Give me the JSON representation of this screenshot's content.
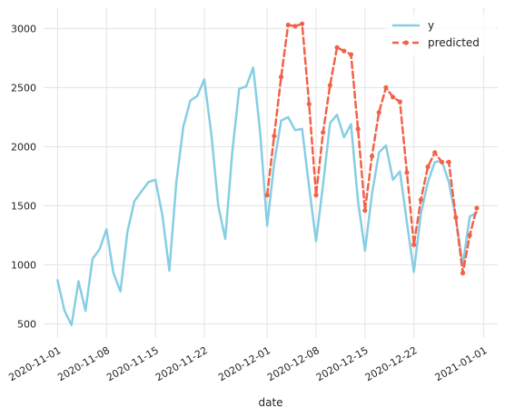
{
  "chart_data": {
    "type": "line",
    "title": "",
    "xlabel": "date",
    "ylabel": "",
    "grid": true,
    "legend_position": "top-right",
    "x_ticks": [
      "2020-11-01",
      "2020-11-08",
      "2020-11-15",
      "2020-11-22",
      "2020-12-01",
      "2020-12-08",
      "2020-12-15",
      "2020-12-22",
      "2021-01-01"
    ],
    "y_ticks": [
      500,
      1000,
      1500,
      2000,
      2500,
      3000
    ],
    "ylim": [
      380,
      3180
    ],
    "xlim": [
      "2020-10-30",
      "2021-01-03"
    ],
    "series": [
      {
        "name": "y",
        "color": "#87CEE3",
        "style": "solid",
        "points": [
          [
            "2020-11-01",
            870
          ],
          [
            "2020-11-02",
            610
          ],
          [
            "2020-11-03",
            490
          ],
          [
            "2020-11-04",
            860
          ],
          [
            "2020-11-05",
            610
          ],
          [
            "2020-11-06",
            1050
          ],
          [
            "2020-11-07",
            1130
          ],
          [
            "2020-11-08",
            1300
          ],
          [
            "2020-11-09",
            930
          ],
          [
            "2020-11-10",
            775
          ],
          [
            "2020-11-11",
            1280
          ],
          [
            "2020-11-12",
            1540
          ],
          [
            "2020-11-13",
            1620
          ],
          [
            "2020-11-14",
            1700
          ],
          [
            "2020-11-15",
            1720
          ],
          [
            "2020-11-16",
            1420
          ],
          [
            "2020-11-17",
            950
          ],
          [
            "2020-11-18",
            1700
          ],
          [
            "2020-11-19",
            2170
          ],
          [
            "2020-11-20",
            2390
          ],
          [
            "2020-11-21",
            2430
          ],
          [
            "2020-11-22",
            2570
          ],
          [
            "2020-11-23",
            2110
          ],
          [
            "2020-11-24",
            1500
          ],
          [
            "2020-11-25",
            1220
          ],
          [
            "2020-11-26",
            1950
          ],
          [
            "2020-11-27",
            2490
          ],
          [
            "2020-11-28",
            2510
          ],
          [
            "2020-11-29",
            2670
          ],
          [
            "2020-11-30",
            2120
          ],
          [
            "2020-12-01",
            1330
          ],
          [
            "2020-12-02",
            1860
          ],
          [
            "2020-12-03",
            2220
          ],
          [
            "2020-12-04",
            2250
          ],
          [
            "2020-12-05",
            2140
          ],
          [
            "2020-12-06",
            2150
          ],
          [
            "2020-12-07",
            1660
          ],
          [
            "2020-12-08",
            1200
          ],
          [
            "2020-12-09",
            1680
          ],
          [
            "2020-12-10",
            2200
          ],
          [
            "2020-12-11",
            2270
          ],
          [
            "2020-12-12",
            2080
          ],
          [
            "2020-12-13",
            2190
          ],
          [
            "2020-12-14",
            1540
          ],
          [
            "2020-12-15",
            1120
          ],
          [
            "2020-12-16",
            1600
          ],
          [
            "2020-12-17",
            1950
          ],
          [
            "2020-12-18",
            2010
          ],
          [
            "2020-12-19",
            1720
          ],
          [
            "2020-12-20",
            1790
          ],
          [
            "2020-12-21",
            1360
          ],
          [
            "2020-12-22",
            940
          ],
          [
            "2020-12-23",
            1430
          ],
          [
            "2020-12-24",
            1700
          ],
          [
            "2020-12-25",
            1870
          ],
          [
            "2020-12-26",
            1880
          ],
          [
            "2020-12-27",
            1700
          ],
          [
            "2020-12-28",
            1400
          ],
          [
            "2020-12-29",
            1000
          ],
          [
            "2020-12-30",
            1410
          ],
          [
            "2020-12-31",
            1440
          ]
        ]
      },
      {
        "name": "predicted",
        "color": "#F26249",
        "style": "dashed",
        "markers": true,
        "points": [
          [
            "2020-12-01",
            1590
          ],
          [
            "2020-12-02",
            2090
          ],
          [
            "2020-12-03",
            2590
          ],
          [
            "2020-12-04",
            3030
          ],
          [
            "2020-12-05",
            3020
          ],
          [
            "2020-12-06",
            3040
          ],
          [
            "2020-12-07",
            2360
          ],
          [
            "2020-12-08",
            1590
          ],
          [
            "2020-12-09",
            2120
          ],
          [
            "2020-12-10",
            2520
          ],
          [
            "2020-12-11",
            2840
          ],
          [
            "2020-12-12",
            2810
          ],
          [
            "2020-12-13",
            2780
          ],
          [
            "2020-12-14",
            2150
          ],
          [
            "2020-12-15",
            1460
          ],
          [
            "2020-12-16",
            1920
          ],
          [
            "2020-12-17",
            2290
          ],
          [
            "2020-12-18",
            2500
          ],
          [
            "2020-12-19",
            2420
          ],
          [
            "2020-12-20",
            2380
          ],
          [
            "2020-12-21",
            1780
          ],
          [
            "2020-12-22",
            1170
          ],
          [
            "2020-12-23",
            1550
          ],
          [
            "2020-12-24",
            1830
          ],
          [
            "2020-12-25",
            1950
          ],
          [
            "2020-12-26",
            1870
          ],
          [
            "2020-12-27",
            1870
          ],
          [
            "2020-12-28",
            1400
          ],
          [
            "2020-12-29",
            930
          ],
          [
            "2020-12-30",
            1250
          ],
          [
            "2020-12-31",
            1480
          ]
        ]
      }
    ]
  }
}
